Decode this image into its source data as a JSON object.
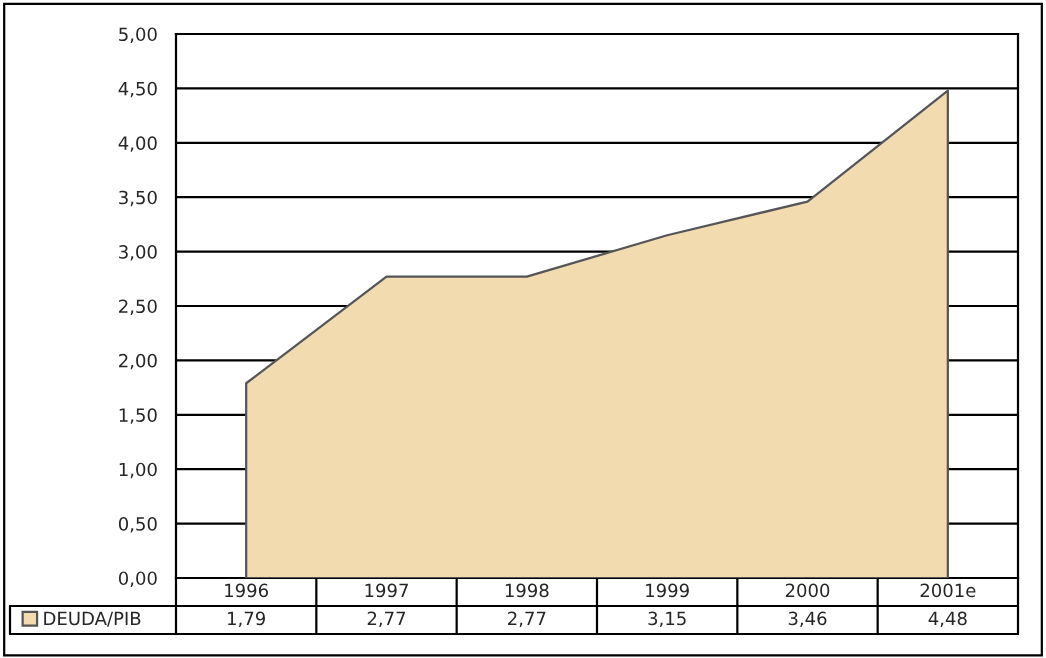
{
  "chart_data": {
    "type": "area",
    "categories": [
      "1996",
      "1997",
      "1998",
      "1999",
      "2000",
      "2001e"
    ],
    "series": [
      {
        "name": "DEUDA/PIB",
        "color": "#f3dbb0",
        "values": [
          1.79,
          2.77,
          2.77,
          3.15,
          3.46,
          4.48
        ],
        "value_labels": [
          "1,79",
          "2,77",
          "2,77",
          "3,15",
          "3,46",
          "4,48"
        ]
      }
    ],
    "ylim": [
      0,
      5
    ],
    "yticks": [
      {
        "value": 0,
        "label": "0,00"
      },
      {
        "value": 0.5,
        "label": "0,50"
      },
      {
        "value": 1,
        "label": "1,00"
      },
      {
        "value": 1.5,
        "label": "1,50"
      },
      {
        "value": 2,
        "label": "2,00"
      },
      {
        "value": 2.5,
        "label": "2,50"
      },
      {
        "value": 3,
        "label": "3,00"
      },
      {
        "value": 3.5,
        "label": "3,50"
      },
      {
        "value": 4,
        "label": "4,00"
      },
      {
        "value": 4.5,
        "label": "4,50"
      },
      {
        "value": 5,
        "label": "5,00"
      }
    ],
    "grid": "y",
    "legend": "bottom left"
  }
}
